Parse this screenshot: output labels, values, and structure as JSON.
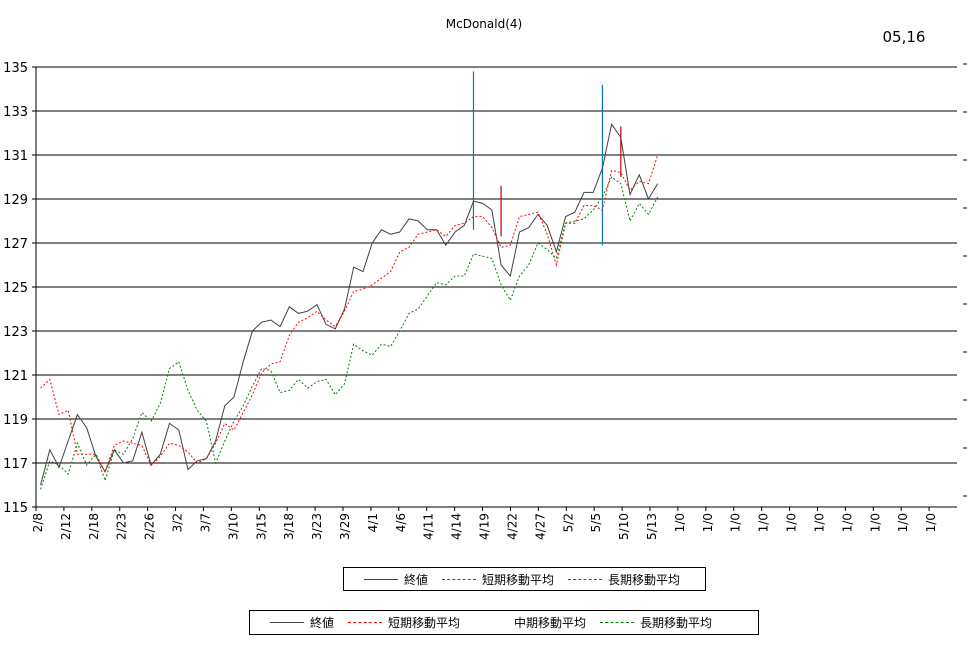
{
  "chart_data": {
    "type": "line",
    "title": "McDonald(4)",
    "date_stamp": "05,16",
    "ylim": [
      115,
      135
    ],
    "yticks": [
      115,
      117,
      119,
      121,
      123,
      125,
      127,
      129,
      131,
      133,
      135
    ],
    "grid": true,
    "xticklabels": [
      "2/8",
      "2/12",
      "2/18",
      "2/23",
      "2/26",
      "3/2",
      "3/7",
      "3/10",
      "3/15",
      "3/18",
      "3/23",
      "3/29",
      "4/1",
      "4/6",
      "4/11",
      "4/14",
      "4/19",
      "4/22",
      "4/27",
      "5/2",
      "5/5",
      "5/10",
      "5/13",
      "1/0",
      "1/0",
      "1/0",
      "1/0",
      "1/0",
      "1/0",
      "1/0",
      "1/0",
      "1/0",
      "1/0"
    ],
    "n_slots": 100,
    "series": [
      {
        "name": "終値",
        "color": "#404040",
        "dash": "solid",
        "values": [
          116.0,
          117.6,
          116.8,
          118.0,
          119.2,
          118.6,
          117.3,
          116.6,
          117.6,
          117.0,
          117.1,
          118.4,
          116.9,
          117.4,
          118.8,
          118.5,
          116.7,
          117.1,
          117.2,
          118.0,
          119.6,
          120.0,
          121.6,
          123.0,
          123.4,
          123.5,
          123.2,
          124.1,
          123.8,
          123.9,
          124.2,
          123.3,
          123.1,
          124.0,
          125.9,
          125.7,
          127.0,
          127.6,
          127.4,
          127.5,
          128.1,
          128.0,
          127.6,
          127.6,
          126.9,
          127.5,
          127.8,
          128.9,
          128.8,
          128.5,
          126.0,
          125.5,
          127.5,
          127.7,
          128.3,
          127.8,
          126.6,
          128.2,
          128.4,
          129.3,
          129.3,
          130.4,
          132.4,
          131.8,
          129.2,
          130.1,
          129.0,
          129.7
        ]
      },
      {
        "name": "短期移動平均",
        "color": "#ff0000",
        "dash": "dashed",
        "values": [
          120.4,
          120.8,
          119.2,
          119.4,
          117.4,
          117.4,
          117.4,
          116.6,
          117.8,
          118.0,
          117.9,
          117.8,
          116.9,
          117.3,
          117.9,
          117.8,
          117.5,
          117.0,
          117.2,
          117.9,
          118.8,
          118.5,
          119.3,
          120.1,
          121.1,
          121.5,
          121.6,
          122.8,
          123.4,
          123.6,
          123.9,
          123.5,
          123.2,
          123.9,
          124.8,
          124.9,
          125.1,
          125.4,
          125.7,
          126.6,
          126.8,
          127.4,
          127.5,
          127.6,
          127.3,
          127.8,
          127.9,
          128.2,
          128.2,
          127.7,
          126.8,
          126.9,
          128.2,
          128.3,
          128.4,
          127.4,
          126.0,
          127.9,
          127.9,
          128.7,
          128.7,
          128.5,
          130.3,
          130.2,
          129.4,
          129.8,
          129.7,
          131.0
        ]
      },
      {
        "name": "中期移動平均",
        "color": "#0000ff",
        "dash": "none",
        "values": []
      },
      {
        "name": "長期移動平均",
        "color": "#008000",
        "dash": "dashed",
        "values": [
          115.8,
          117.1,
          116.9,
          116.5,
          117.9,
          116.9,
          117.4,
          116.2,
          117.6,
          117.4,
          118.1,
          119.3,
          118.9,
          119.7,
          121.3,
          121.6,
          120.3,
          119.4,
          118.9,
          117.0,
          118.0,
          118.9,
          119.6,
          120.5,
          121.3,
          121.2,
          120.2,
          120.3,
          120.8,
          120.4,
          120.7,
          120.8,
          120.1,
          120.6,
          122.4,
          122.1,
          121.9,
          122.4,
          122.3,
          123.0,
          123.8,
          124.0,
          124.6,
          125.2,
          125.1,
          125.5,
          125.5,
          126.5,
          126.4,
          126.3,
          125.1,
          124.4,
          125.5,
          126.0,
          127.0,
          126.7,
          126.3,
          127.9,
          128.0,
          128.1,
          128.5,
          129.1,
          130.0,
          129.7,
          128.0,
          128.8,
          128.3,
          129.1
        ]
      }
    ],
    "markers": [
      {
        "index": 47,
        "low": 127.6,
        "high": 134.8,
        "color": "#0080a0"
      },
      {
        "index": 50,
        "low": 127.3,
        "high": 129.6,
        "color": "#c00000"
      },
      {
        "index": 61,
        "low": 126.9,
        "high": 134.2,
        "color": "#0080a0"
      },
      {
        "index": 63,
        "low": 130.0,
        "high": 132.3,
        "color": "#c00000"
      }
    ],
    "legend_top": [
      "終値",
      "短期移動平均",
      "長期移動平均"
    ],
    "legend_bottom": [
      "終値",
      "短期移動平均",
      "中期移動平均",
      "長期移動平均"
    ]
  }
}
